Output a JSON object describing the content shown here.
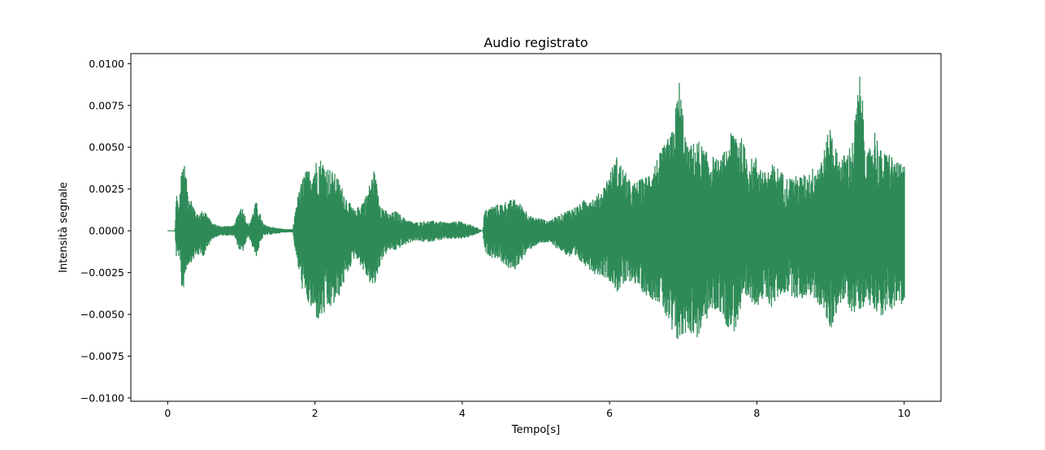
{
  "chart_data": {
    "type": "line",
    "title": "Audio registrato",
    "xlabel": "Tempo[s]",
    "ylabel": "Intensità segnale",
    "xlim": [
      -0.5,
      10.5
    ],
    "ylim": [
      -0.0102,
      0.0106
    ],
    "x_ticks": [
      0,
      2,
      4,
      6,
      8,
      10
    ],
    "x_tick_labels": [
      "0",
      "2",
      "4",
      "6",
      "8",
      "10"
    ],
    "y_ticks": [
      0.01,
      0.0075,
      0.005,
      0.0025,
      0.0,
      -0.0025,
      -0.005,
      -0.0075,
      -0.01
    ],
    "y_tick_labels": [
      "0.0100",
      "0.0075",
      "0.0050",
      "0.0025",
      "0.0000",
      "−0.0025",
      "−0.0050",
      "−0.0075",
      "−0.0100"
    ],
    "grid": false,
    "line_color": "#2e8b57",
    "series": [
      {
        "envelope": {
          "t": [
            0.0,
            0.1,
            0.12,
            0.15,
            0.2,
            0.23,
            0.27,
            0.3,
            0.4,
            0.5,
            0.6,
            0.7,
            0.8,
            0.9,
            1.0,
            1.1,
            1.2,
            1.3,
            1.45,
            1.6,
            1.7,
            1.75,
            1.85,
            1.95,
            2.05,
            2.15,
            2.3,
            2.45,
            2.55,
            2.7,
            2.8,
            2.9,
            3.0,
            3.1,
            3.2,
            3.35,
            3.5,
            3.65,
            3.8,
            3.95,
            4.1,
            4.2,
            4.28,
            4.3,
            4.4,
            4.5,
            4.6,
            4.7,
            4.8,
            4.95,
            5.05,
            5.15,
            5.3,
            5.45,
            5.6,
            5.7,
            5.8,
            5.9,
            6.0,
            6.1,
            6.3,
            6.5,
            6.7,
            6.85,
            6.95,
            7.05,
            7.2,
            7.3,
            7.4,
            7.5,
            7.6,
            7.7,
            7.8,
            7.9,
            8.0,
            8.1,
            8.2,
            8.3,
            8.4,
            8.5,
            8.6,
            8.7,
            8.8,
            8.9,
            9.0,
            9.1,
            9.2,
            9.3,
            9.4,
            9.5,
            9.6,
            9.7,
            9.8,
            9.9,
            10.0
          ],
          "pos": [
            0.0,
            0.0,
            0.0025,
            0.0015,
            0.0045,
            0.004,
            0.0026,
            0.0022,
            0.001,
            0.0013,
            0.0005,
            0.0003,
            0.0003,
            0.0003,
            0.0016,
            0.0003,
            0.0018,
            0.0004,
            0.0002,
            0.0001,
            0.0001,
            0.0018,
            0.0035,
            0.0038,
            0.0045,
            0.004,
            0.0033,
            0.0018,
            0.0012,
            0.0022,
            0.0037,
            0.0016,
            0.001,
            0.0012,
            0.0008,
            0.0005,
            0.0006,
            0.0006,
            0.0005,
            0.0006,
            0.0004,
            0.0002,
            0.0,
            0.0012,
            0.0015,
            0.0016,
            0.0018,
            0.0019,
            0.0016,
            0.0008,
            0.0008,
            0.0006,
            0.0009,
            0.0013,
            0.0016,
            0.0021,
            0.002,
            0.0025,
            0.0035,
            0.0045,
            0.0028,
            0.0033,
            0.0048,
            0.006,
            0.0092,
            0.005,
            0.0055,
            0.0048,
            0.0045,
            0.0042,
            0.0052,
            0.0065,
            0.0055,
            0.0043,
            0.0045,
            0.0035,
            0.004,
            0.0038,
            0.0032,
            0.0033,
            0.0033,
            0.0035,
            0.004,
            0.0046,
            0.0065,
            0.0045,
            0.0046,
            0.0055,
            0.0096,
            0.0045,
            0.0062,
            0.0046,
            0.0048,
            0.0041,
            0.004
          ],
          "neg": [
            0.0,
            0.0,
            0.0018,
            0.0015,
            0.004,
            0.003,
            0.0021,
            0.002,
            0.0015,
            0.0015,
            0.0005,
            0.0003,
            0.0003,
            0.0003,
            0.0015,
            0.0003,
            0.0016,
            0.0003,
            0.0002,
            0.0001,
            0.0001,
            0.0018,
            0.004,
            0.0048,
            0.0055,
            0.005,
            0.0043,
            0.0025,
            0.0015,
            0.0028,
            0.0036,
            0.0018,
            0.0012,
            0.0012,
            0.0009,
            0.0006,
            0.0007,
            0.0006,
            0.0005,
            0.0005,
            0.0004,
            0.0002,
            0.0,
            0.0013,
            0.0016,
            0.0017,
            0.0022,
            0.0025,
            0.0018,
            0.001,
            0.0008,
            0.0007,
            0.0011,
            0.0016,
            0.0019,
            0.0022,
            0.0026,
            0.0027,
            0.003,
            0.0037,
            0.003,
            0.0039,
            0.0044,
            0.0065,
            0.0068,
            0.006,
            0.0065,
            0.0055,
            0.0048,
            0.0049,
            0.0058,
            0.0061,
            0.0048,
            0.0042,
            0.0045,
            0.0042,
            0.0046,
            0.004,
            0.0037,
            0.004,
            0.0042,
            0.0038,
            0.0042,
            0.0048,
            0.0061,
            0.0046,
            0.0042,
            0.005,
            0.0047,
            0.0044,
            0.0047,
            0.0052,
            0.0048,
            0.0045,
            0.0047
          ]
        }
      }
    ]
  }
}
